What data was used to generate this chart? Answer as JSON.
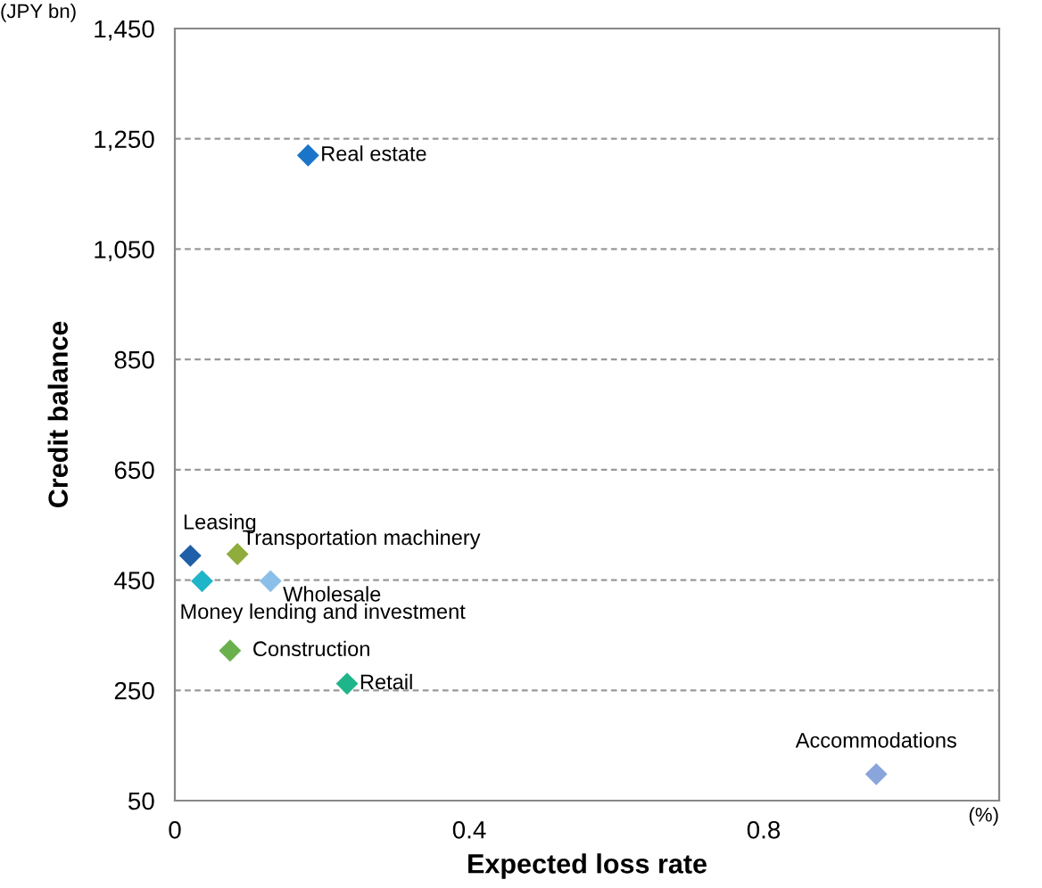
{
  "chart_data": {
    "type": "scatter",
    "xlabel": "Expected loss rate",
    "ylabel": "Credit balance",
    "annotations": [
      "(JPY bn)",
      "(%)"
    ],
    "xlim": [
      0,
      1.12
    ],
    "xticks": [
      0,
      0.4,
      0.8
    ],
    "ylim": [
      50,
      1450
    ],
    "yticks": [
      {
        "value": 50,
        "label": "50"
      },
      {
        "value": 250,
        "label": "250"
      },
      {
        "value": 450,
        "label": "450"
      },
      {
        "value": 650,
        "label": "650"
      },
      {
        "value": 850,
        "label": "850"
      },
      {
        "value": 1050,
        "label": "1,050"
      },
      {
        "value": 1250,
        "label": "1,250"
      },
      {
        "value": 1450,
        "label": "1,450"
      }
    ],
    "grid": "y",
    "marker": "diamond",
    "legend": false,
    "series": [
      {
        "name": "Real estate",
        "color": "#1a75c9",
        "x": [
          0.181
        ],
        "values": [
          1220
        ]
      },
      {
        "name": "Leasing",
        "color": "#1f5fa8",
        "x": [
          0.021
        ],
        "values": [
          494
        ]
      },
      {
        "name": "Transportation machinery",
        "color": "#8fac3c",
        "x": [
          0.085
        ],
        "values": [
          497
        ]
      },
      {
        "name": "Money lending and investment",
        "color": "#1fb5c8",
        "x": [
          0.037
        ],
        "values": [
          448
        ]
      },
      {
        "name": "Wholesale",
        "color": "#8cbfe8",
        "x": [
          0.13
        ],
        "values": [
          448
        ]
      },
      {
        "name": "Construction",
        "color": "#6ab04c",
        "x": [
          0.075
        ],
        "values": [
          322
        ]
      },
      {
        "name": "Retail",
        "color": "#1fb58a",
        "x": [
          0.234
        ],
        "values": [
          262
        ]
      },
      {
        "name": "Accommodations",
        "color": "#8aa5dc",
        "x": [
          0.953
        ],
        "values": [
          98
        ]
      }
    ]
  }
}
